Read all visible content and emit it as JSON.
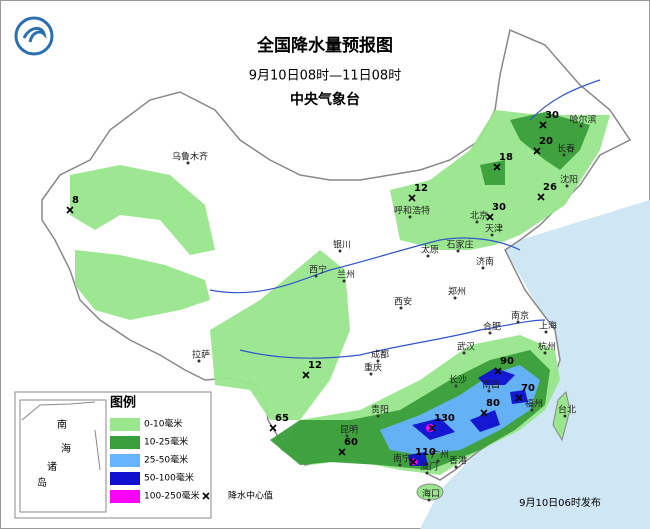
{
  "header": {
    "title": "全国降水量预报图",
    "period": "9月10日08时—11日08时",
    "issuer": "中央气象台"
  },
  "legend": {
    "title": "图例",
    "items": [
      {
        "label": "0-10毫米",
        "color": "#99e68c"
      },
      {
        "label": "10-25毫米",
        "color": "#3a9e3a"
      },
      {
        "label": "25-50毫米",
        "color": "#66b3ff"
      },
      {
        "label": "50-100毫米",
        "color": "#1010d0"
      },
      {
        "label": "100-250毫米",
        "color": "#ff00ff"
      }
    ],
    "center_label": "降水中心值"
  },
  "inset": {
    "labels": [
      "南",
      "海",
      "诸",
      "岛"
    ]
  },
  "cities": [
    "乌鲁木齐",
    "哈尔滨",
    "长春",
    "沈阳",
    "呼和浩特",
    "北京",
    "天津",
    "石家庄",
    "太原",
    "济南",
    "银川",
    "兰州",
    "西宁",
    "郑州",
    "西安",
    "合肥",
    "南京",
    "上海",
    "杭州",
    "武汉",
    "成都",
    "重庆",
    "长沙",
    "南昌",
    "福州",
    "台北",
    "贵阳",
    "昆明",
    "南宁",
    "广州",
    "香港",
    "澳门",
    "海口",
    "拉萨"
  ],
  "centers": [
    8,
    12,
    18,
    30,
    20,
    26,
    30,
    12,
    65,
    60,
    130,
    110,
    90,
    80,
    70
  ],
  "footer": {
    "release": "9月10日06时发布"
  }
}
